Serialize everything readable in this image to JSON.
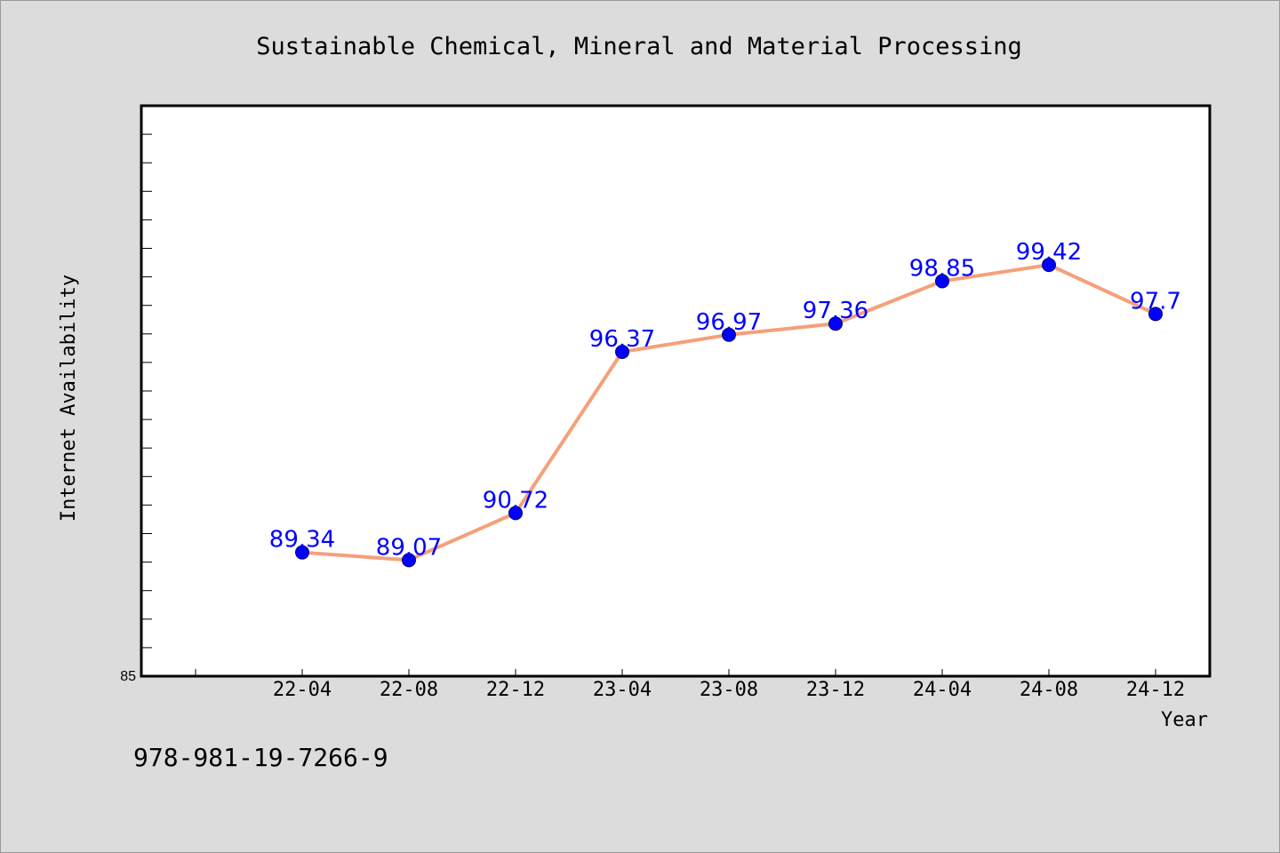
{
  "chart_data": {
    "type": "line",
    "title": "Sustainable Chemical, Mineral and Material Processing",
    "xlabel": "Year",
    "ylabel": "Internet Availability",
    "categories": [
      "22-04",
      "22-08",
      "22-12",
      "23-04",
      "23-08",
      "23-12",
      "24-04",
      "24-08",
      "24-12"
    ],
    "series": [
      {
        "values": [
          89.34,
          89.07,
          90.72,
          96.37,
          96.97,
          97.36,
          98.85,
          99.42,
          97.7
        ],
        "data_labels": [
          "89.34",
          "89.07",
          "90.72",
          "96.37",
          "96.97",
          "97.36",
          "98.85",
          "99.42",
          "97.7"
        ]
      }
    ],
    "ylim": [
      85,
      105
    ],
    "y_tick_labels": [
      "85"
    ],
    "grid": false,
    "legend": "none"
  },
  "footer": {
    "code": "978-981-19-7266-9"
  },
  "colors": {
    "background": "#dcdcdc",
    "plot_area": "#ffffff",
    "line": "#f5a07a",
    "marker": "#0000ff",
    "data_label": "#0000ff"
  }
}
